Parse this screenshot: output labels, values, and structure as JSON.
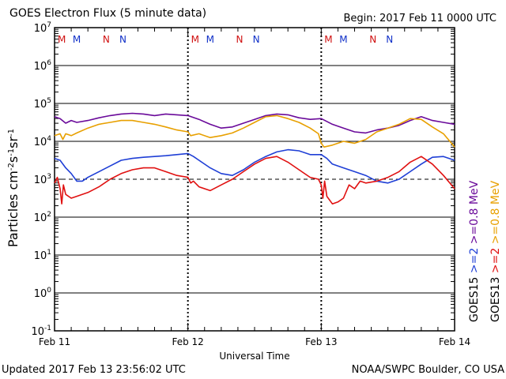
{
  "header": {
    "title": "GOES Electron Flux (5 minute data)",
    "begin": "Begin: 2017 Feb 11 0000 UTC"
  },
  "footer": {
    "updated": "Updated 2017 Feb 13 23:56:02 UTC",
    "credit": "NOAA/SWPC Boulder, CO USA"
  },
  "colors": {
    "purple": "#6a0a9a",
    "orange": "#e8a000",
    "blue": "#1f3fd6",
    "red": "#e01010",
    "marker_m": "#d01010",
    "marker_n_red": "#d01010",
    "marker_n_blue": "#1030c8"
  },
  "chart_data": {
    "type": "line",
    "title": "GOES Electron Flux (5 minute data)",
    "xlabel": "Universal Time",
    "ylabel": "Particles cm-2s-1sr-1",
    "ylim_log10": [
      -1,
      7
    ],
    "y_tick_labels": [
      "10-1",
      "100",
      "101",
      "102",
      "103",
      "104",
      "105",
      "106",
      "107"
    ],
    "x_tick_labels": [
      "Feb 11",
      "Feb 12",
      "Feb 13",
      "Feb 14"
    ],
    "xlim_hours": [
      0,
      72
    ],
    "threshold_log10": 3,
    "markers": [
      {
        "label": "M",
        "hour": 1.3,
        "color": "marker_m"
      },
      {
        "label": "M",
        "hour": 4.0,
        "color": "marker_n_blue"
      },
      {
        "label": "N",
        "hour": 9.3,
        "color": "marker_n_red"
      },
      {
        "label": "N",
        "hour": 12.3,
        "color": "marker_n_blue"
      },
      {
        "label": "M",
        "hour": 25.3,
        "color": "marker_m"
      },
      {
        "label": "M",
        "hour": 28.0,
        "color": "marker_n_blue"
      },
      {
        "label": "N",
        "hour": 33.3,
        "color": "marker_n_red"
      },
      {
        "label": "N",
        "hour": 36.3,
        "color": "marker_n_blue"
      },
      {
        "label": "M",
        "hour": 49.3,
        "color": "marker_m"
      },
      {
        "label": "M",
        "hour": 52.0,
        "color": "marker_n_blue"
      },
      {
        "label": "N",
        "hour": 57.3,
        "color": "marker_n_red"
      },
      {
        "label": "N",
        "hour": 60.3,
        "color": "marker_n_blue"
      }
    ],
    "legend": [
      {
        "sat": "GOES15",
        "energy": ">=2",
        "unit": "MeV",
        "color": "blue"
      },
      {
        "sat": "GOES15",
        "energy": ">=0.8",
        "unit": "MeV",
        "color": "purple"
      },
      {
        "sat": "GOES13",
        "energy": ">=2",
        "unit": "MeV",
        "color": "red"
      },
      {
        "sat": "GOES13",
        "energy": ">=0.8",
        "unit": "MeV",
        "color": "orange"
      }
    ],
    "series": [
      {
        "name": "GOES15 >=0.8 MeV",
        "color": "purple",
        "x": [
          0,
          1,
          2,
          3,
          4,
          6,
          8,
          10,
          12,
          14,
          16,
          18,
          20,
          22,
          24,
          26,
          28,
          30,
          32,
          34,
          36,
          38,
          40,
          42,
          44,
          46,
          48,
          50,
          52,
          54,
          56,
          58,
          60,
          62,
          64,
          66,
          68,
          70,
          72
        ],
        "y": [
          4.65,
          4.6,
          4.48,
          4.55,
          4.5,
          4.55,
          4.62,
          4.68,
          4.72,
          4.74,
          4.72,
          4.68,
          4.72,
          4.7,
          4.68,
          4.58,
          4.45,
          4.35,
          4.38,
          4.48,
          4.58,
          4.68,
          4.72,
          4.7,
          4.62,
          4.58,
          4.6,
          4.45,
          4.35,
          4.25,
          4.22,
          4.3,
          4.35,
          4.42,
          4.55,
          4.65,
          4.55,
          4.5,
          4.45
        ]
      },
      {
        "name": "GOES13 >=0.8 MeV",
        "color": "orange",
        "x": [
          0,
          1,
          1.5,
          2,
          3,
          4,
          6,
          8,
          10,
          12,
          14,
          16,
          18,
          20,
          22,
          24,
          24.5,
          26,
          28,
          30,
          32,
          34,
          36,
          38,
          40,
          42,
          44,
          46,
          47.5,
          48,
          48.5,
          50,
          52,
          54,
          56,
          58,
          60,
          62,
          64,
          66,
          68,
          70,
          72
        ],
        "y": [
          4.15,
          4.2,
          4.05,
          4.2,
          4.15,
          4.22,
          4.35,
          4.45,
          4.5,
          4.55,
          4.55,
          4.5,
          4.45,
          4.38,
          4.3,
          4.25,
          4.15,
          4.2,
          4.1,
          4.15,
          4.22,
          4.35,
          4.5,
          4.65,
          4.68,
          4.6,
          4.5,
          4.35,
          4.2,
          3.95,
          3.85,
          3.9,
          4.0,
          3.95,
          4.05,
          4.25,
          4.35,
          4.45,
          4.6,
          4.58,
          4.38,
          4.2,
          3.85
        ]
      },
      {
        "name": "GOES15 >=2 MeV",
        "color": "blue",
        "x": [
          0,
          1,
          2,
          3,
          4,
          5,
          6,
          8,
          10,
          12,
          14,
          16,
          18,
          20,
          22,
          24,
          25,
          26,
          28,
          30,
          32,
          34,
          36,
          38,
          40,
          42,
          44,
          46,
          48,
          49,
          50,
          52,
          54,
          56,
          58,
          60,
          62,
          64,
          66,
          68,
          70,
          72
        ],
        "y": [
          3.55,
          3.5,
          3.3,
          3.15,
          2.95,
          2.95,
          3.05,
          3.2,
          3.35,
          3.5,
          3.55,
          3.58,
          3.6,
          3.62,
          3.65,
          3.68,
          3.6,
          3.5,
          3.3,
          3.15,
          3.1,
          3.25,
          3.45,
          3.6,
          3.72,
          3.78,
          3.75,
          3.65,
          3.65,
          3.55,
          3.4,
          3.3,
          3.2,
          3.1,
          2.95,
          2.9,
          3.0,
          3.2,
          3.4,
          3.58,
          3.6,
          3.5
        ]
      },
      {
        "name": "GOES13 >=2 MeV",
        "color": "red",
        "x": [
          0,
          0.5,
          1,
          1.3,
          1.6,
          2,
          3,
          4,
          6,
          8,
          10,
          12,
          14,
          16,
          18,
          20,
          22,
          24,
          24.5,
          25,
          26,
          28,
          30,
          32,
          34,
          36,
          38,
          40,
          42,
          44,
          46,
          47.5,
          48,
          48.3,
          48.6,
          49,
          50,
          51,
          52,
          53,
          54,
          55,
          56,
          58,
          60,
          62,
          64,
          66,
          68,
          70,
          72
        ],
        "y": [
          2.9,
          3.05,
          2.75,
          2.35,
          2.85,
          2.6,
          2.5,
          2.55,
          2.65,
          2.8,
          3.0,
          3.15,
          3.25,
          3.3,
          3.3,
          3.2,
          3.1,
          3.05,
          2.9,
          2.95,
          2.8,
          2.7,
          2.85,
          3.0,
          3.2,
          3.4,
          3.55,
          3.6,
          3.45,
          3.25,
          3.05,
          3.0,
          2.85,
          2.5,
          2.95,
          2.55,
          2.35,
          2.4,
          2.5,
          2.85,
          2.75,
          2.95,
          2.9,
          2.95,
          3.05,
          3.2,
          3.45,
          3.6,
          3.4,
          3.1,
          2.75
        ]
      }
    ]
  }
}
